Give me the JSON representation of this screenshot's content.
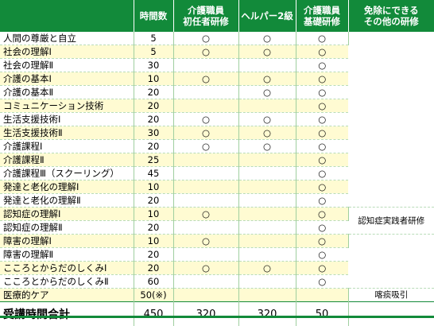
{
  "headers": {
    "name": "",
    "hours": "時間数",
    "shoninsha_line1": "介護職員",
    "shoninsha_line2": "初任者研修",
    "helper2": "ヘルパー2級",
    "kiso_line1": "介護職員",
    "kiso_line2": "基礎研修",
    "exempt_line1": "免除にできる",
    "exempt_line2": "その他の研修"
  },
  "mark": "○",
  "rows": [
    {
      "name": "人間の尊厳と自立",
      "hours": "5",
      "shoninsha": "○",
      "helper2": "○",
      "kiso": "○"
    },
    {
      "name": "社会の理解Ⅰ",
      "hours": "5",
      "shoninsha": "○",
      "helper2": "○",
      "kiso": "○"
    },
    {
      "name": "社会の理解Ⅱ",
      "hours": "30",
      "shoninsha": "",
      "helper2": "",
      "kiso": "○"
    },
    {
      "name": "介護の基本Ⅰ",
      "hours": "10",
      "shoninsha": "○",
      "helper2": "○",
      "kiso": "○"
    },
    {
      "name": "介護の基本Ⅱ",
      "hours": "20",
      "shoninsha": "",
      "helper2": "○",
      "kiso": "○"
    },
    {
      "name": "コミュニケーション技術",
      "hours": "20",
      "shoninsha": "",
      "helper2": "",
      "kiso": "○"
    },
    {
      "name": "生活支援技術Ⅰ",
      "hours": "20",
      "shoninsha": "○",
      "helper2": "○",
      "kiso": "○"
    },
    {
      "name": "生活支援技術Ⅱ",
      "hours": "30",
      "shoninsha": "○",
      "helper2": "○",
      "kiso": "○"
    },
    {
      "name": "介護課程Ⅰ",
      "hours": "20",
      "shoninsha": "○",
      "helper2": "○",
      "kiso": "○"
    },
    {
      "name": "介護課程Ⅱ",
      "hours": "25",
      "shoninsha": "",
      "helper2": "",
      "kiso": "○"
    },
    {
      "name": "介護課程Ⅲ（スクーリング）",
      "hours": "45",
      "shoninsha": "",
      "helper2": "",
      "kiso": "○"
    },
    {
      "name": "発達と老化の理解Ⅰ",
      "hours": "10",
      "shoninsha": "",
      "helper2": "",
      "kiso": "○"
    },
    {
      "name": "発達と老化の理解Ⅱ",
      "hours": "20",
      "shoninsha": "",
      "helper2": "",
      "kiso": "○"
    },
    {
      "name": "認知症の理解Ⅰ",
      "hours": "10",
      "shoninsha": "○",
      "helper2": "",
      "kiso": "○"
    },
    {
      "name": "認知症の理解Ⅱ",
      "hours": "20",
      "shoninsha": "",
      "helper2": "",
      "kiso": "○"
    },
    {
      "name": "障害の理解Ⅰ",
      "hours": "10",
      "shoninsha": "○",
      "helper2": "",
      "kiso": "○"
    },
    {
      "name": "障害の理解Ⅱ",
      "hours": "20",
      "shoninsha": "",
      "helper2": "",
      "kiso": "○"
    },
    {
      "name": "こころとからだのしくみⅠ",
      "hours": "20",
      "shoninsha": "○",
      "helper2": "○",
      "kiso": "○"
    },
    {
      "name": "こころとからだのしくみⅡ",
      "hours": "60",
      "shoninsha": "",
      "helper2": "",
      "kiso": "○"
    },
    {
      "name": "医療的ケア",
      "hours": "50(※)",
      "shoninsha": "",
      "helper2": "",
      "kiso": ""
    }
  ],
  "exempt_ninchisho": "認知症実践者研修",
  "exempt_iryo": "喀痰吸引",
  "total": {
    "label": "受講時間合計",
    "hours": "450",
    "shoninsha": "320",
    "helper2": "320",
    "kiso": "50"
  }
}
